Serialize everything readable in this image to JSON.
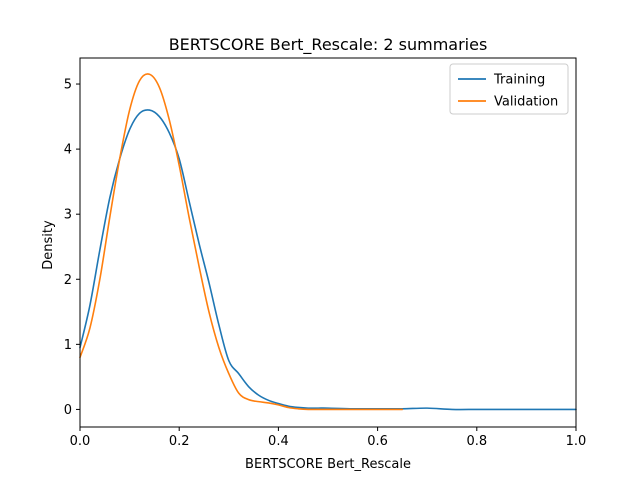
{
  "chart_data": {
    "type": "line",
    "title": "BERTSCORE Bert_Rescale: 2 summaries",
    "xlabel": "BERTSCORE Bert_Rescale",
    "ylabel": "Density",
    "xlim": [
      0.0,
      1.0
    ],
    "ylim": [
      -0.27,
      5.4
    ],
    "xticks": [
      0.0,
      0.2,
      0.4,
      0.6,
      0.8,
      1.0
    ],
    "xtick_labels": [
      "0.0",
      "0.2",
      "0.4",
      "0.6",
      "0.8",
      "1.0"
    ],
    "yticks": [
      0,
      1,
      2,
      3,
      4,
      5
    ],
    "ytick_labels": [
      "0",
      "1",
      "2",
      "3",
      "4",
      "5"
    ],
    "grid": false,
    "legend_position": "top-right",
    "series": [
      {
        "name": "Training",
        "color": "#1f77b4",
        "x": [
          0.0,
          0.02,
          0.04,
          0.06,
          0.08,
          0.1,
          0.12,
          0.14,
          0.16,
          0.18,
          0.2,
          0.22,
          0.24,
          0.26,
          0.28,
          0.3,
          0.32,
          0.34,
          0.36,
          0.38,
          0.4,
          0.42,
          0.44,
          0.46,
          0.48,
          0.5,
          0.55,
          0.6,
          0.65,
          0.7,
          0.75,
          0.8,
          0.85,
          0.9,
          0.95,
          1.0
        ],
        "y": [
          0.95,
          1.6,
          2.45,
          3.25,
          3.85,
          4.3,
          4.55,
          4.6,
          4.5,
          4.25,
          3.85,
          3.2,
          2.55,
          1.95,
          1.3,
          0.75,
          0.55,
          0.35,
          0.22,
          0.14,
          0.09,
          0.05,
          0.03,
          0.02,
          0.02,
          0.02,
          0.01,
          0.01,
          0.01,
          0.02,
          0.0,
          0.0,
          0.0,
          0.0,
          0.0,
          0.0
        ]
      },
      {
        "name": "Validation",
        "color": "#ff7f0e",
        "x": [
          0.0,
          0.02,
          0.04,
          0.06,
          0.08,
          0.1,
          0.12,
          0.14,
          0.16,
          0.18,
          0.2,
          0.22,
          0.24,
          0.26,
          0.28,
          0.3,
          0.32,
          0.34,
          0.36,
          0.38,
          0.4,
          0.42,
          0.44,
          0.46,
          0.48,
          0.5,
          0.55,
          0.6,
          0.65
        ],
        "y": [
          0.8,
          1.25,
          2.0,
          2.95,
          3.85,
          4.6,
          5.05,
          5.15,
          4.95,
          4.45,
          3.75,
          2.95,
          2.2,
          1.5,
          0.95,
          0.55,
          0.25,
          0.15,
          0.12,
          0.1,
          0.07,
          0.03,
          0.01,
          0.0,
          0.0,
          0.0,
          0.0,
          0.0,
          0.0
        ]
      }
    ]
  }
}
